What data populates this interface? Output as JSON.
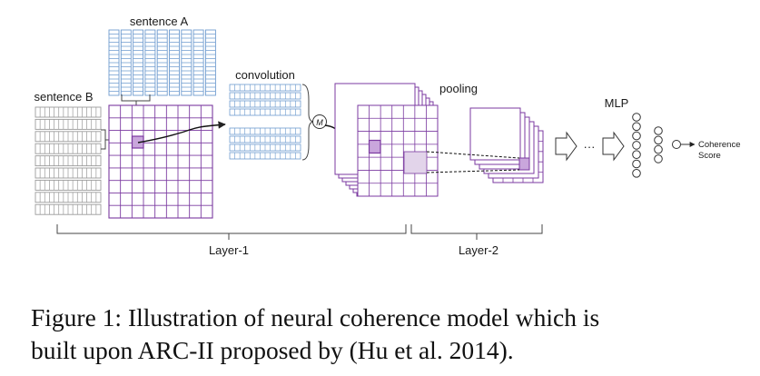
{
  "labels": {
    "sentence_a": "sentence A",
    "sentence_b": "sentence B",
    "convolution": "convolution",
    "merge_symbol": "M",
    "pooling": "pooling",
    "mlp": "MLP",
    "ellipsis": "···",
    "coherence_score_line1": "Coherence",
    "coherence_score_line2": "Score",
    "layer1": "Layer-1",
    "layer2": "Layer-2"
  },
  "caption": {
    "line1": "Figure 1: Illustration of neural coherence model which is",
    "line2": "built upon ARC-II proposed by (Hu et al. 2014)."
  },
  "colors": {
    "sentence_a": "#6f9ccf",
    "sentence_b": "#9c9c9c",
    "grid": "#7b3aa0",
    "grid_highlight": "#c9a6dc",
    "pooled_highlight": "#e2d4ea",
    "line": "#222222"
  }
}
